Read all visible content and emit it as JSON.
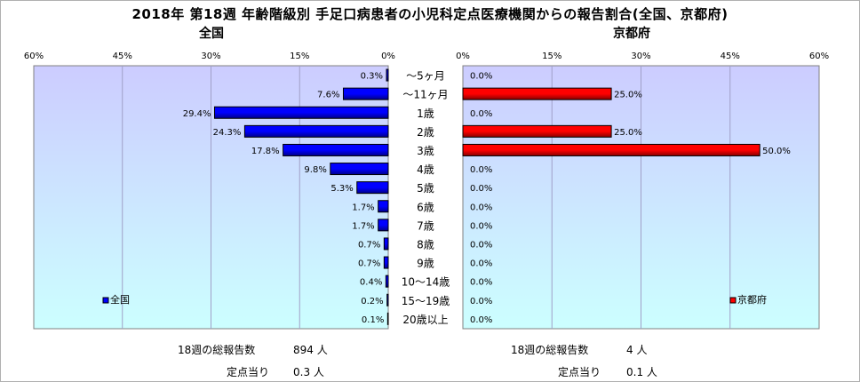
{
  "title": "2018年 第18週 年齢階級別 手足口病患者の小児科定点医療機関からの報告割合(全国、京都府)",
  "colors": {
    "national": "#0000ff",
    "kyoto": "#ff0000",
    "plot_bg": "#ccccff"
  },
  "chart_data": [
    {
      "type": "bar",
      "orientation": "horizontal",
      "title": "全国",
      "x_direction": "reversed",
      "categories": [
        "～5ヶ月",
        "～11ヶ月",
        "1歳",
        "2歳",
        "3歳",
        "4歳",
        "5歳",
        "6歳",
        "7歳",
        "8歳",
        "9歳",
        "10～14歳",
        "15～19歳",
        "20歳以上"
      ],
      "series": [
        {
          "name": "全国",
          "values": [
            0.3,
            7.6,
            29.4,
            24.3,
            17.8,
            9.8,
            5.3,
            1.7,
            1.7,
            0.7,
            0.7,
            0.4,
            0.2,
            0.1
          ],
          "labels": [
            "0.3%",
            "7.6%",
            "29.4%",
            "24.3%",
            "17.8%",
            "9.8%",
            "5.3%",
            "1.7%",
            "1.7%",
            "0.7%",
            "0.7%",
            "0.4%",
            "0.2%",
            "0.1%"
          ]
        }
      ],
      "xlim": [
        0,
        60
      ],
      "xticks": [
        "60%",
        "45%",
        "30%",
        "15%",
        "0%"
      ],
      "grid": true,
      "legend": "bottom-left"
    },
    {
      "type": "bar",
      "orientation": "horizontal",
      "title": "京都府",
      "categories": [
        "～5ヶ月",
        "～11ヶ月",
        "1歳",
        "2歳",
        "3歳",
        "4歳",
        "5歳",
        "6歳",
        "7歳",
        "8歳",
        "9歳",
        "10～14歳",
        "15～19歳",
        "20歳以上"
      ],
      "series": [
        {
          "name": "京都府",
          "values": [
            0,
            25.0,
            0,
            25.0,
            50.0,
            0,
            0,
            0,
            0,
            0,
            0,
            0,
            0,
            0
          ],
          "labels": [
            "0.0%",
            "25.0%",
            "0.0%",
            "25.0%",
            "50.0%",
            "0.0%",
            "0.0%",
            "0.0%",
            "0.0%",
            "0.0%",
            "0.0%",
            "0.0%",
            "0.0%",
            "0.0%"
          ]
        }
      ],
      "xlim": [
        0,
        60
      ],
      "xticks": [
        "0%",
        "15%",
        "30%",
        "45%",
        "60%"
      ],
      "grid": true,
      "legend": "bottom-right"
    }
  ],
  "footer": {
    "national": {
      "total_label": "18週の総報告数",
      "total_value": "894 人",
      "per_site_label": "定点当り",
      "per_site_value": "0.3 人"
    },
    "kyoto": {
      "total_label": "18週の総報告数",
      "total_value": "4 人",
      "per_site_label": "定点当り",
      "per_site_value": "0.1 人"
    }
  }
}
